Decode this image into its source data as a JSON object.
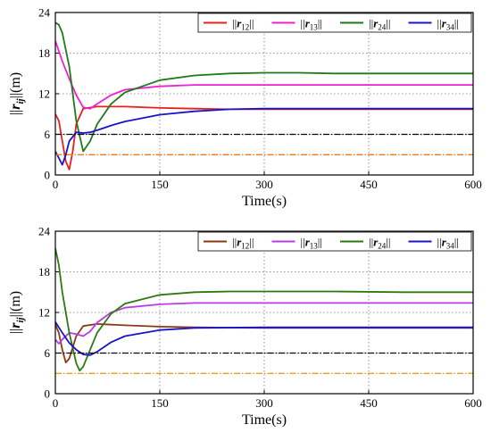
{
  "chart_data": [
    {
      "type": "line",
      "title": "",
      "xlabel": "Time(s)",
      "ylabel": "||r_ij||(m)",
      "xlim": [
        0,
        600
      ],
      "ylim": [
        0,
        24
      ],
      "xticks": [
        "0",
        "150",
        "300",
        "450",
        "600"
      ],
      "yticks": [
        "0",
        "6",
        "12",
        "18",
        "24"
      ],
      "grid": true,
      "legend_position": "top-right",
      "series": [
        {
          "name": "||r12||",
          "color": "#e8201c",
          "style": "solid",
          "x": [
            0,
            5,
            10,
            15,
            20,
            25,
            30,
            40,
            60,
            100,
            150,
            200,
            250,
            300,
            400,
            500,
            600
          ],
          "y": [
            9,
            8,
            5,
            2,
            0.8,
            3.5,
            7.5,
            9.8,
            10.1,
            10.1,
            9.9,
            9.8,
            9.7,
            9.7,
            9.7,
            9.7,
            9.7
          ]
        },
        {
          "name": "||r13||",
          "color": "#ee20d2",
          "style": "solid",
          "x": [
            0,
            10,
            20,
            30,
            40,
            50,
            60,
            80,
            100,
            150,
            200,
            300,
            400,
            500,
            600
          ],
          "y": [
            19.8,
            16.8,
            14.2,
            11.8,
            10,
            9.8,
            10.5,
            11.8,
            12.6,
            13.1,
            13.3,
            13.3,
            13.3,
            13.3,
            13.3
          ]
        },
        {
          "name": "||r24||",
          "color": "#1f7a1a",
          "style": "solid",
          "x": [
            0,
            5,
            10,
            20,
            30,
            40,
            50,
            60,
            80,
            100,
            150,
            200,
            250,
            300,
            350,
            400,
            500,
            600
          ],
          "y": [
            22.5,
            22.2,
            21,
            16,
            8,
            3.5,
            5,
            7.5,
            10.5,
            12.2,
            14,
            14.7,
            15,
            15.1,
            15.1,
            15,
            15,
            15
          ]
        },
        {
          "name": "||r34||",
          "color": "#1a14c8",
          "style": "solid",
          "x": [
            0,
            5,
            10,
            15,
            20,
            30,
            40,
            50,
            60,
            80,
            100,
            150,
            200,
            250,
            300,
            400,
            500,
            600
          ],
          "y": [
            3.5,
            2.5,
            1.5,
            3,
            5,
            6.3,
            6.2,
            6.3,
            6.6,
            7.3,
            7.9,
            8.9,
            9.4,
            9.7,
            9.8,
            9.8,
            9.8,
            9.8
          ]
        },
        {
          "name": "",
          "color": "#000000",
          "style": "dashdot",
          "x": [
            0,
            600
          ],
          "y": [
            6,
            6
          ]
        },
        {
          "name": "",
          "color": "#f07a10",
          "style": "dashdot",
          "x": [
            0,
            600
          ],
          "y": [
            3,
            3
          ]
        }
      ]
    },
    {
      "type": "line",
      "title": "",
      "xlabel": "Time(s)",
      "ylabel": "||r_ij||(m)",
      "xlim": [
        0,
        600
      ],
      "ylim": [
        0,
        24
      ],
      "xticks": [
        "0",
        "150",
        "300",
        "450",
        "600"
      ],
      "yticks": [
        "0",
        "6",
        "12",
        "18",
        "24"
      ],
      "grid": true,
      "legend_position": "top-right",
      "series": [
        {
          "name": "||r12||",
          "color": "#8b3a14",
          "style": "solid",
          "x": [
            0,
            5,
            10,
            15,
            20,
            30,
            40,
            60,
            100,
            150,
            200,
            300,
            400,
            500,
            600
          ],
          "y": [
            10.2,
            9,
            6.5,
            4.6,
            5.2,
            8.5,
            10,
            10.3,
            10.1,
            9.9,
            9.8,
            9.7,
            9.7,
            9.7,
            9.7
          ]
        },
        {
          "name": "||r13||",
          "color": "#b83ce8",
          "style": "solid",
          "x": [
            0,
            5,
            10,
            20,
            30,
            40,
            50,
            60,
            80,
            100,
            150,
            200,
            300,
            400,
            500,
            600
          ],
          "y": [
            8,
            7.4,
            8,
            9,
            8.8,
            8.5,
            9.2,
            10.5,
            12,
            12.7,
            13.2,
            13.4,
            13.4,
            13.4,
            13.4,
            13.4
          ]
        },
        {
          "name": "||r24||",
          "color": "#2e7a10",
          "style": "solid",
          "x": [
            0,
            5,
            10,
            20,
            30,
            35,
            40,
            50,
            60,
            80,
            100,
            150,
            200,
            250,
            300,
            400,
            500,
            600
          ],
          "y": [
            21.5,
            19,
            15,
            9,
            4.5,
            3.4,
            4,
            6.5,
            9,
            11.8,
            13.3,
            14.6,
            15,
            15.1,
            15.1,
            15.1,
            15,
            15
          ]
        },
        {
          "name": "||r34||",
          "color": "#1a14c8",
          "style": "solid",
          "x": [
            0,
            10,
            20,
            30,
            40,
            50,
            60,
            80,
            100,
            150,
            200,
            300,
            400,
            500,
            600
          ],
          "y": [
            10.6,
            9,
            7.5,
            6.5,
            5.8,
            5.7,
            6.2,
            7.6,
            8.5,
            9.4,
            9.7,
            9.8,
            9.8,
            9.8,
            9.8
          ]
        },
        {
          "name": "",
          "color": "#000000",
          "style": "dashdot",
          "x": [
            0,
            600
          ],
          "y": [
            6,
            6
          ]
        },
        {
          "name": "",
          "color": "#e8a020",
          "style": "dashdot",
          "x": [
            0,
            600
          ],
          "y": [
            3,
            3
          ]
        }
      ]
    }
  ]
}
